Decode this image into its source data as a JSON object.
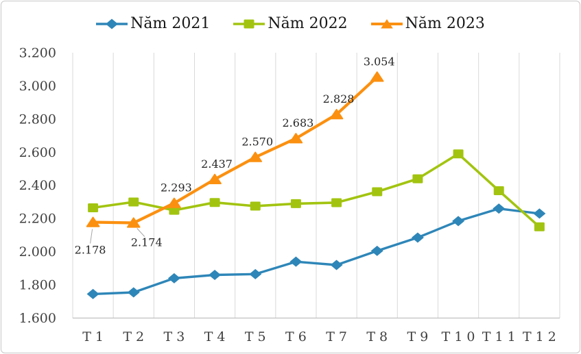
{
  "chart_data": {
    "type": "line",
    "title": "",
    "xlabel": "",
    "ylabel": "",
    "categories": [
      "T1",
      "T2",
      "T3",
      "T4",
      "T5",
      "T6",
      "T7",
      "T8",
      "T9",
      "T10",
      "T11",
      "T12"
    ],
    "series": [
      {
        "name": "Năm 2021",
        "color": "#2E86B8",
        "marker": "diamond",
        "values": [
          1745,
          1755,
          1840,
          1860,
          1865,
          1940,
          1920,
          2005,
          2085,
          2185,
          2260,
          2230
        ]
      },
      {
        "name": "Năm 2022",
        "color": "#A2C410",
        "marker": "square",
        "values": [
          2265,
          2300,
          2250,
          2297,
          2275,
          2290,
          2296,
          2362,
          2440,
          2590,
          2368,
          2150
        ]
      },
      {
        "name": "Năm 2023",
        "color": "#FB9010",
        "marker": "triangle",
        "values": [
          2178,
          2174,
          2293,
          2437,
          2570,
          2683,
          2828,
          3054,
          null,
          null,
          null,
          null
        ],
        "data_labels": [
          "2.178",
          "2.174",
          "2.293",
          "2.437",
          "2.570",
          "2.683",
          "2.828",
          "3.054"
        ]
      }
    ],
    "ylim": [
      1600,
      3200
    ],
    "yticks": [
      "3.200",
      "3.000",
      "2.800",
      "2.600",
      "2.400",
      "2.200",
      "2.000",
      "1.800",
      "1.600"
    ],
    "grid": "vertical-only",
    "legend_position": "top"
  },
  "colors": {
    "gridline": "#D9D9D9",
    "axis_line": "#BFBFBF",
    "tick_text": "#3F3F3F",
    "data_label_text": "#262626",
    "leader_line": "#A6A6A6",
    "frame_border": "#C8C8C8"
  }
}
